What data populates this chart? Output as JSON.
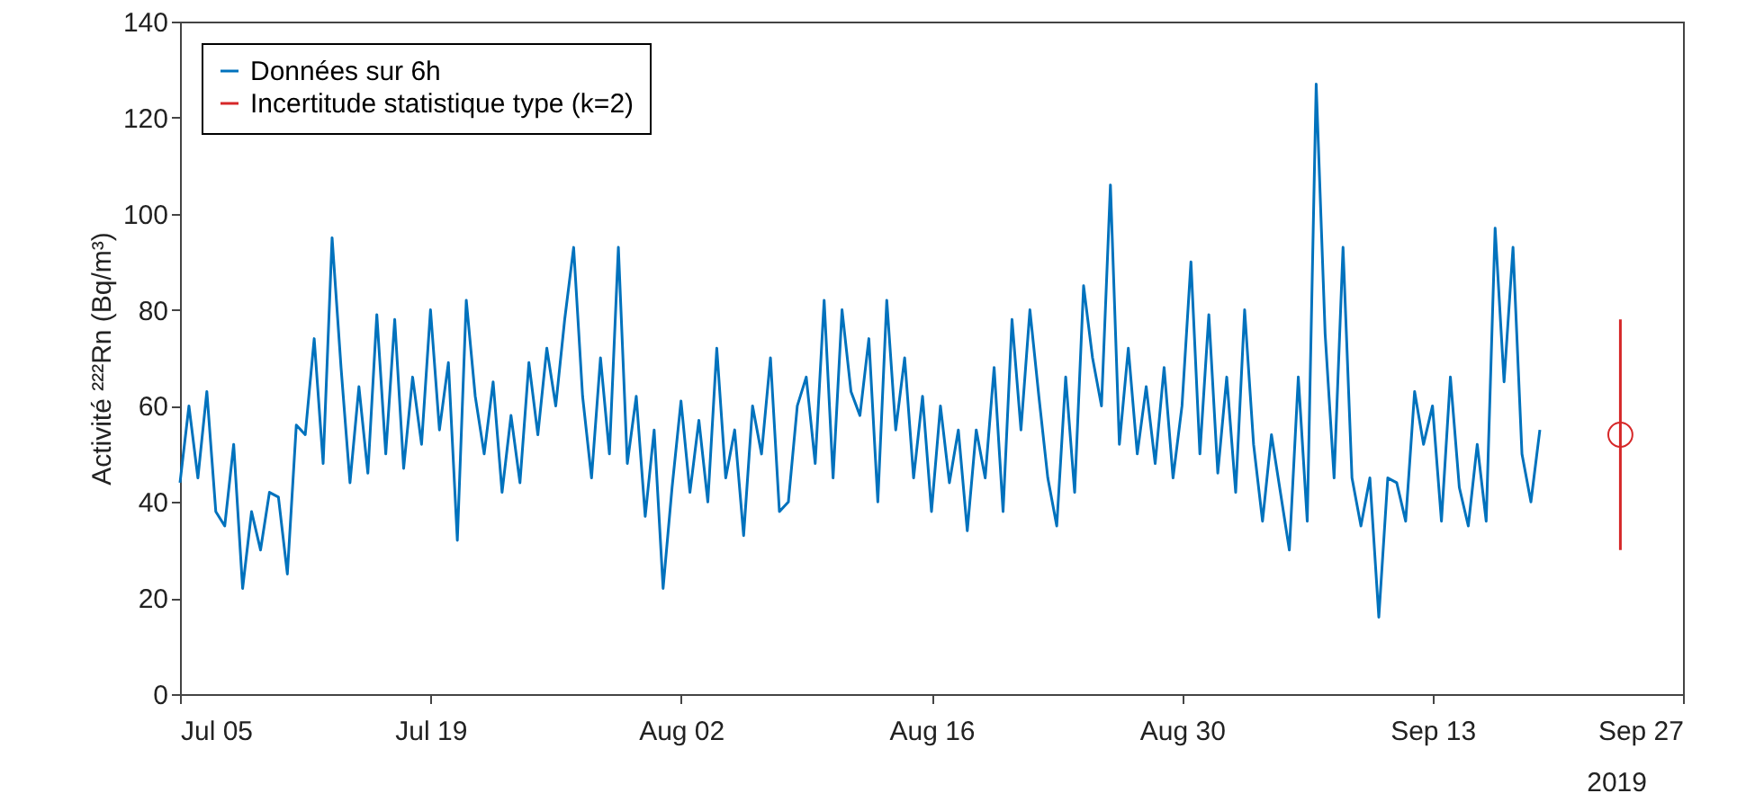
{
  "chart_data": {
    "type": "line",
    "ylabel": "Activité ²²²Rn (Bq/m³)",
    "xlim": [
      "2019-07-05",
      "2019-09-27"
    ],
    "xticks": [
      {
        "value": "2019-07-05",
        "label": "Jul 05"
      },
      {
        "value": "2019-07-19",
        "label": "Jul 19"
      },
      {
        "value": "2019-08-02",
        "label": "Aug 02"
      },
      {
        "value": "2019-08-16",
        "label": "Aug 16"
      },
      {
        "value": "2019-08-30",
        "label": "Aug 30"
      },
      {
        "value": "2019-09-13",
        "label": "Sep 13"
      },
      {
        "value": "2019-09-27",
        "label": "Sep 27"
      }
    ],
    "ylim": [
      0,
      140
    ],
    "yticks": [
      0,
      20,
      40,
      60,
      80,
      100,
      120,
      140
    ],
    "grid": false,
    "legend": "top left",
    "annotations": [
      "2019"
    ],
    "series": [
      {
        "name": "Données sur 6h",
        "color": "#0072bd",
        "marker": "none",
        "line_style": "solid",
        "x": [
          "2019-07-05T00:00",
          "2019-07-05T12:00",
          "2019-07-06T00:00",
          "2019-07-06T12:00",
          "2019-07-07T00:00",
          "2019-07-07T12:00",
          "2019-07-08T00:00",
          "2019-07-08T12:00",
          "2019-07-09T00:00",
          "2019-07-09T12:00",
          "2019-07-10T00:00",
          "2019-07-10T12:00",
          "2019-07-11T00:00",
          "2019-07-11T12:00",
          "2019-07-12T00:00",
          "2019-07-12T12:00",
          "2019-07-13T00:00",
          "2019-07-13T12:00",
          "2019-07-14T00:00",
          "2019-07-14T12:00",
          "2019-07-15T00:00",
          "2019-07-15T12:00",
          "2019-07-16T00:00",
          "2019-07-16T12:00",
          "2019-07-17T00:00",
          "2019-07-17T12:00",
          "2019-07-18T00:00",
          "2019-07-18T12:00",
          "2019-07-19T00:00",
          "2019-07-19T12:00",
          "2019-07-20T00:00",
          "2019-07-20T12:00",
          "2019-07-21T00:00",
          "2019-07-21T12:00",
          "2019-07-22T00:00",
          "2019-07-22T12:00",
          "2019-07-23T00:00",
          "2019-07-23T12:00",
          "2019-07-24T00:00",
          "2019-07-24T12:00",
          "2019-07-25T00:00",
          "2019-07-25T12:00",
          "2019-07-26T00:00",
          "2019-07-26T12:00",
          "2019-07-27T00:00",
          "2019-07-27T12:00",
          "2019-07-28T00:00",
          "2019-07-28T12:00",
          "2019-07-29T00:00",
          "2019-07-29T12:00",
          "2019-07-30T00:00",
          "2019-07-30T12:00",
          "2019-07-31T00:00",
          "2019-07-31T12:00",
          "2019-08-01T00:00",
          "2019-08-01T12:00",
          "2019-08-02T00:00",
          "2019-08-02T12:00",
          "2019-08-03T00:00",
          "2019-08-03T12:00",
          "2019-08-04T00:00",
          "2019-08-04T12:00",
          "2019-08-05T00:00",
          "2019-08-05T12:00",
          "2019-08-06T00:00",
          "2019-08-06T12:00",
          "2019-08-07T00:00",
          "2019-08-07T12:00",
          "2019-08-08T00:00",
          "2019-08-08T12:00",
          "2019-08-09T00:00",
          "2019-08-09T12:00",
          "2019-08-10T00:00",
          "2019-08-10T12:00",
          "2019-08-11T00:00",
          "2019-08-11T12:00",
          "2019-08-12T00:00",
          "2019-08-12T12:00",
          "2019-08-13T00:00",
          "2019-08-13T12:00",
          "2019-08-14T00:00",
          "2019-08-14T12:00",
          "2019-08-15T00:00",
          "2019-08-15T12:00",
          "2019-08-16T00:00",
          "2019-08-16T12:00",
          "2019-08-17T00:00",
          "2019-08-17T12:00",
          "2019-08-18T00:00",
          "2019-08-18T12:00",
          "2019-08-19T00:00",
          "2019-08-19T12:00",
          "2019-08-20T00:00",
          "2019-08-20T12:00",
          "2019-08-21T00:00",
          "2019-08-21T12:00",
          "2019-08-22T00:00",
          "2019-08-22T12:00",
          "2019-08-23T00:00",
          "2019-08-23T12:00",
          "2019-08-24T00:00",
          "2019-08-24T12:00",
          "2019-08-25T00:00",
          "2019-08-25T12:00",
          "2019-08-26T00:00",
          "2019-08-26T12:00",
          "2019-08-27T00:00",
          "2019-08-27T12:00",
          "2019-08-28T00:00",
          "2019-08-28T12:00",
          "2019-08-29T00:00",
          "2019-08-29T12:00",
          "2019-08-30T00:00",
          "2019-08-30T12:00",
          "2019-08-31T00:00",
          "2019-08-31T12:00",
          "2019-09-01T00:00",
          "2019-09-01T12:00",
          "2019-09-02T00:00",
          "2019-09-02T12:00",
          "2019-09-03T00:00",
          "2019-09-03T12:00",
          "2019-09-04T00:00",
          "2019-09-04T12:00",
          "2019-09-05T00:00",
          "2019-09-05T12:00",
          "2019-09-06T00:00",
          "2019-09-06T12:00",
          "2019-09-07T00:00",
          "2019-09-07T12:00",
          "2019-09-08T00:00",
          "2019-09-08T12:00",
          "2019-09-09T00:00",
          "2019-09-09T12:00",
          "2019-09-10T00:00",
          "2019-09-10T12:00",
          "2019-09-11T00:00",
          "2019-09-11T12:00",
          "2019-09-12T00:00",
          "2019-09-12T12:00",
          "2019-09-13T00:00",
          "2019-09-13T12:00",
          "2019-09-14T00:00",
          "2019-09-14T12:00",
          "2019-09-15T00:00",
          "2019-09-15T12:00",
          "2019-09-16T00:00",
          "2019-09-16T12:00",
          "2019-09-17T00:00",
          "2019-09-17T12:00",
          "2019-09-18T00:00",
          "2019-09-18T12:00",
          "2019-09-19T00:00"
        ],
        "values": [
          44,
          60,
          45,
          63,
          38,
          35,
          52,
          22,
          38,
          30,
          42,
          41,
          25,
          56,
          54,
          74,
          48,
          95,
          68,
          44,
          64,
          46,
          79,
          50,
          78,
          47,
          66,
          52,
          80,
          55,
          69,
          32,
          82,
          62,
          50,
          65,
          42,
          58,
          44,
          69,
          54,
          72,
          60,
          78,
          93,
          62,
          45,
          70,
          50,
          93,
          48,
          62,
          37,
          55,
          22,
          43,
          61,
          42,
          57,
          40,
          72,
          45,
          55,
          33,
          60,
          50,
          70,
          38,
          40,
          60,
          66,
          48,
          82,
          45,
          80,
          63,
          58,
          74,
          40,
          82,
          55,
          70,
          45,
          62,
          38,
          60,
          44,
          55,
          34,
          55,
          45,
          68,
          38,
          78,
          55,
          80,
          62,
          45,
          35,
          66,
          42,
          85,
          70,
          60,
          106,
          52,
          72,
          50,
          64,
          48,
          68,
          45,
          60,
          90,
          50,
          79,
          46,
          66,
          42,
          80,
          52,
          36,
          54,
          42,
          30,
          66,
          36,
          127,
          75,
          45,
          93,
          45,
          35,
          45,
          16,
          45,
          44,
          36,
          63,
          52,
          60,
          36,
          66,
          43,
          35,
          52,
          36,
          97,
          65,
          93,
          50,
          40,
          55
        ]
      },
      {
        "name": "Incertitude statistique type (k=2)",
        "type": "scatter",
        "color": "#d62728",
        "marker": "circle",
        "x": [
          "2019-09-23T12:00"
        ],
        "values": [
          54
        ],
        "errors": [
          [
            30,
            78
          ]
        ]
      }
    ]
  }
}
